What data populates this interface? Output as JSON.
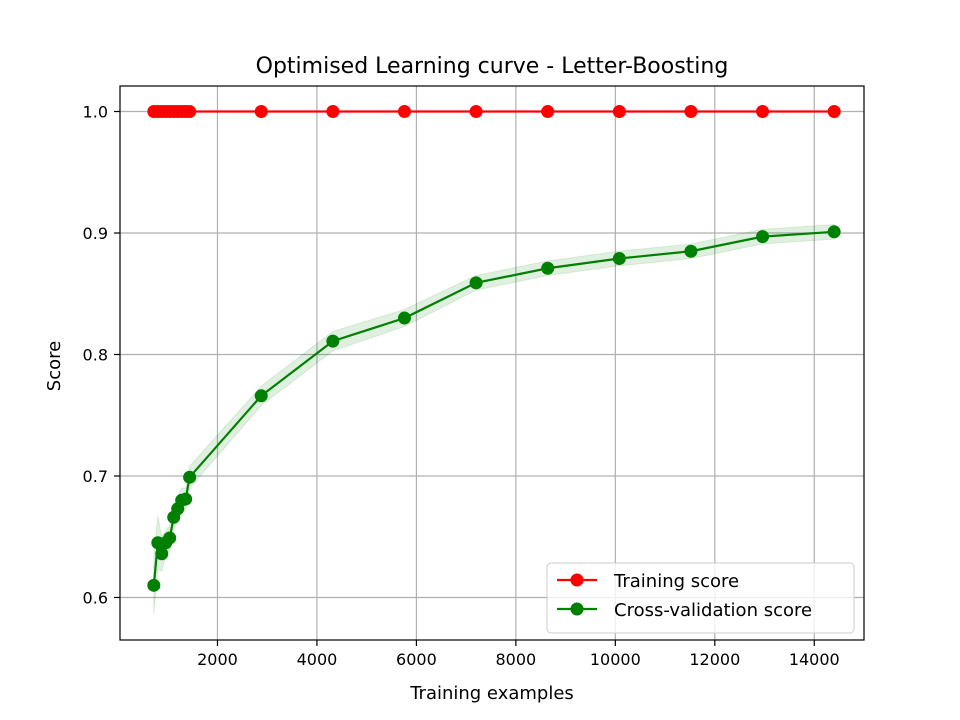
{
  "chart_data": {
    "type": "line",
    "title": "Optimised Learning curve - Letter-Boosting",
    "xlabel": "Training examples",
    "ylabel": "Score",
    "xlim": [
      40,
      15000
    ],
    "ylim": [
      0.565,
      1.021
    ],
    "xticks": [
      2000,
      4000,
      6000,
      8000,
      10000,
      12000,
      14000
    ],
    "yticks": [
      0.6,
      0.7,
      0.8,
      0.9,
      1.0
    ],
    "xtick_labels": [
      "2000",
      "4000",
      "6000",
      "8000",
      "10000",
      "12000",
      "14000"
    ],
    "ytick_labels": [
      "0.6",
      "0.7",
      "0.8",
      "0.9",
      "1.0"
    ],
    "grid": true,
    "legend_position": "lower-right",
    "series": [
      {
        "name": "Training score",
        "color": "#ff0000",
        "marker": "circle",
        "x": [
          720,
          800,
          880,
          960,
          1040,
          1120,
          1200,
          1280,
          1360,
          1440,
          2880,
          4320,
          5760,
          7200,
          8640,
          10080,
          11520,
          12960,
          14400
        ],
        "y": [
          1.0,
          1.0,
          1.0,
          1.0,
          1.0,
          1.0,
          1.0,
          1.0,
          1.0,
          1.0,
          1.0,
          1.0,
          1.0,
          1.0,
          1.0,
          1.0,
          1.0,
          1.0,
          1.0
        ],
        "band": [
          0,
          0,
          0,
          0,
          0,
          0,
          0,
          0,
          0,
          0,
          0,
          0,
          0,
          0,
          0,
          0,
          0,
          0,
          0
        ]
      },
      {
        "name": "Cross-validation score",
        "color": "#008000",
        "band_color": "#008000",
        "marker": "circle",
        "x": [
          720,
          800,
          880,
          960,
          1040,
          1120,
          1200,
          1280,
          1360,
          1440,
          2880,
          4320,
          5760,
          7200,
          8640,
          10080,
          11520,
          12960,
          14400
        ],
        "y": [
          0.61,
          0.645,
          0.636,
          0.645,
          0.649,
          0.666,
          0.673,
          0.68,
          0.681,
          0.699,
          0.766,
          0.811,
          0.83,
          0.859,
          0.871,
          0.879,
          0.885,
          0.897,
          0.901
        ],
        "band": [
          0.024,
          0.022,
          0.014,
          0.01,
          0.01,
          0.009,
          0.01,
          0.01,
          0.009,
          0.009,
          0.008,
          0.008,
          0.007,
          0.006,
          0.006,
          0.006,
          0.006,
          0.006,
          0.006
        ]
      }
    ]
  }
}
